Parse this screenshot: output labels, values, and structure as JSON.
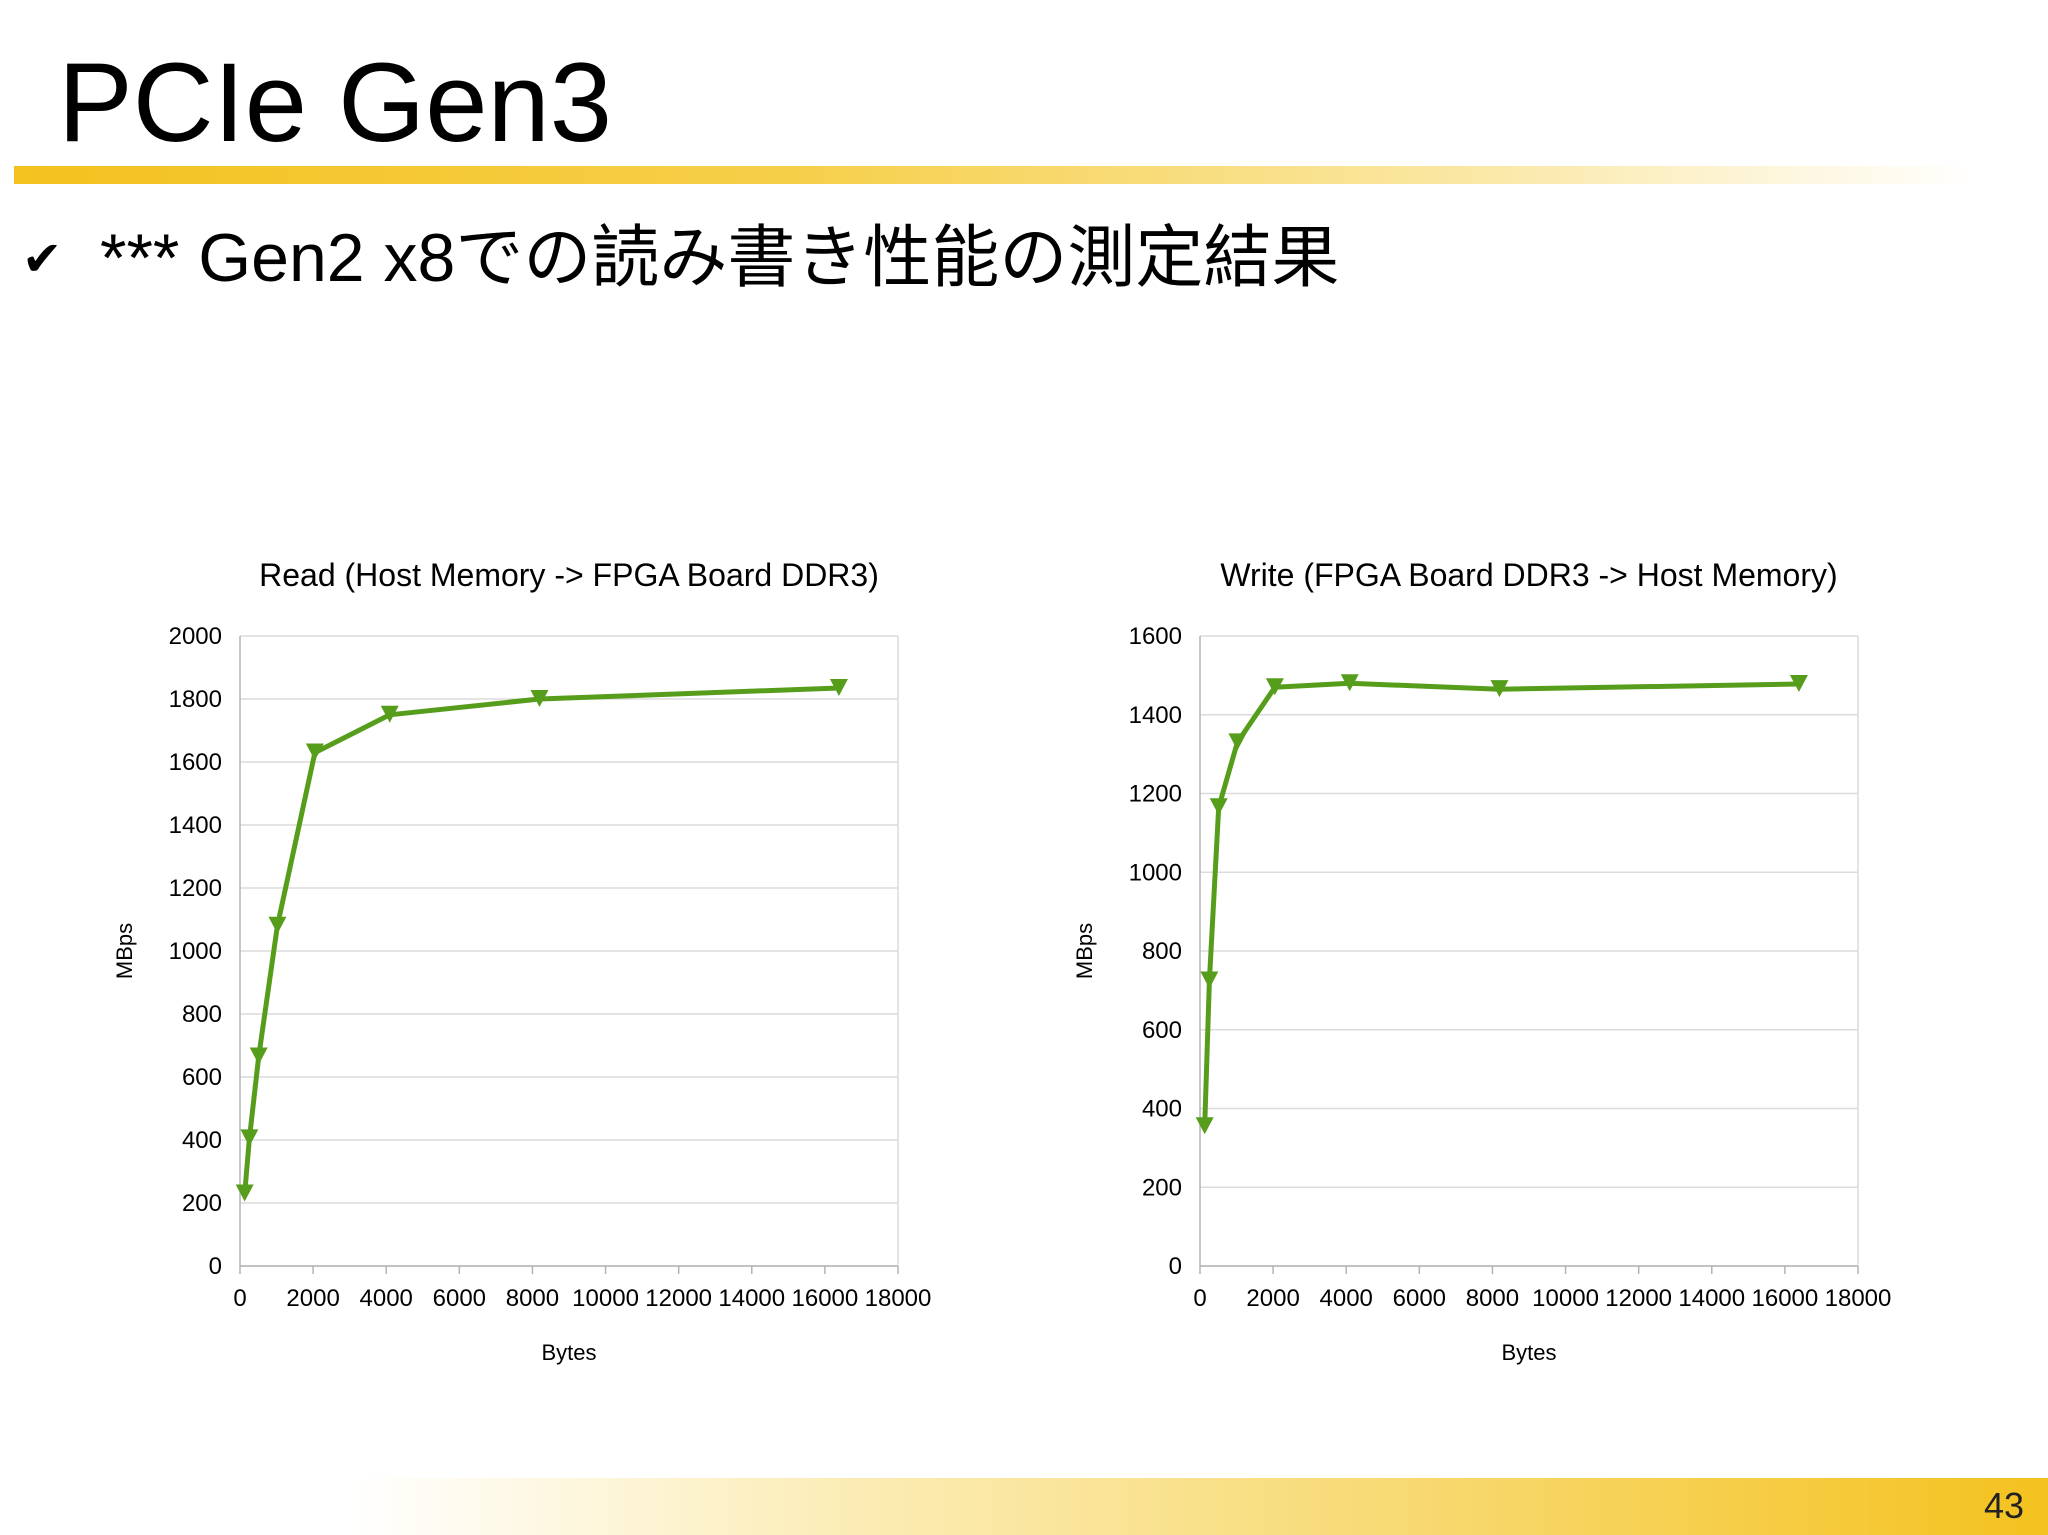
{
  "slide": {
    "title": "PCIe Gen3",
    "bullet": "*** Gen2 x8での読み書き性能の測定結果",
    "bullet_icon": "check-icon",
    "page_number": "43",
    "accent_color": "#f4c21f"
  },
  "chart_data": [
    {
      "type": "line",
      "title": "Read (Host Memory -> FPGA Board DDR3)",
      "xlabel": "Bytes",
      "ylabel": "MBps",
      "xlim": [
        0,
        18000
      ],
      "ylim": [
        0,
        2000
      ],
      "xticks": [
        0,
        2000,
        4000,
        6000,
        8000,
        10000,
        12000,
        14000,
        16000,
        18000
      ],
      "yticks": [
        0,
        200,
        400,
        600,
        800,
        1000,
        1200,
        1400,
        1600,
        1800,
        2000
      ],
      "grid": true,
      "marker": "triangle-down",
      "color": "#579d1c",
      "series": [
        {
          "x": [
            128,
            256,
            512,
            1024,
            2048,
            4096,
            8192,
            16384
          ],
          "y": [
            230,
            405,
            665,
            1080,
            1630,
            1750,
            1800,
            1835
          ]
        }
      ]
    },
    {
      "type": "line",
      "title": "Write (FPGA Board DDR3 -> Host Memory)",
      "xlabel": "Bytes",
      "ylabel": "MBps",
      "xlim": [
        0,
        18000
      ],
      "ylim": [
        0,
        1600
      ],
      "xticks": [
        0,
        2000,
        4000,
        6000,
        8000,
        10000,
        12000,
        14000,
        16000,
        18000
      ],
      "yticks": [
        0,
        200,
        400,
        600,
        800,
        1000,
        1200,
        1400,
        1600
      ],
      "grid": true,
      "marker": "triangle-down",
      "color": "#579d1c",
      "series": [
        {
          "x": [
            128,
            256,
            512,
            1024,
            2048,
            4096,
            8192,
            16384
          ],
          "y": [
            355,
            725,
            1165,
            1330,
            1470,
            1480,
            1465,
            1478
          ]
        }
      ]
    }
  ]
}
